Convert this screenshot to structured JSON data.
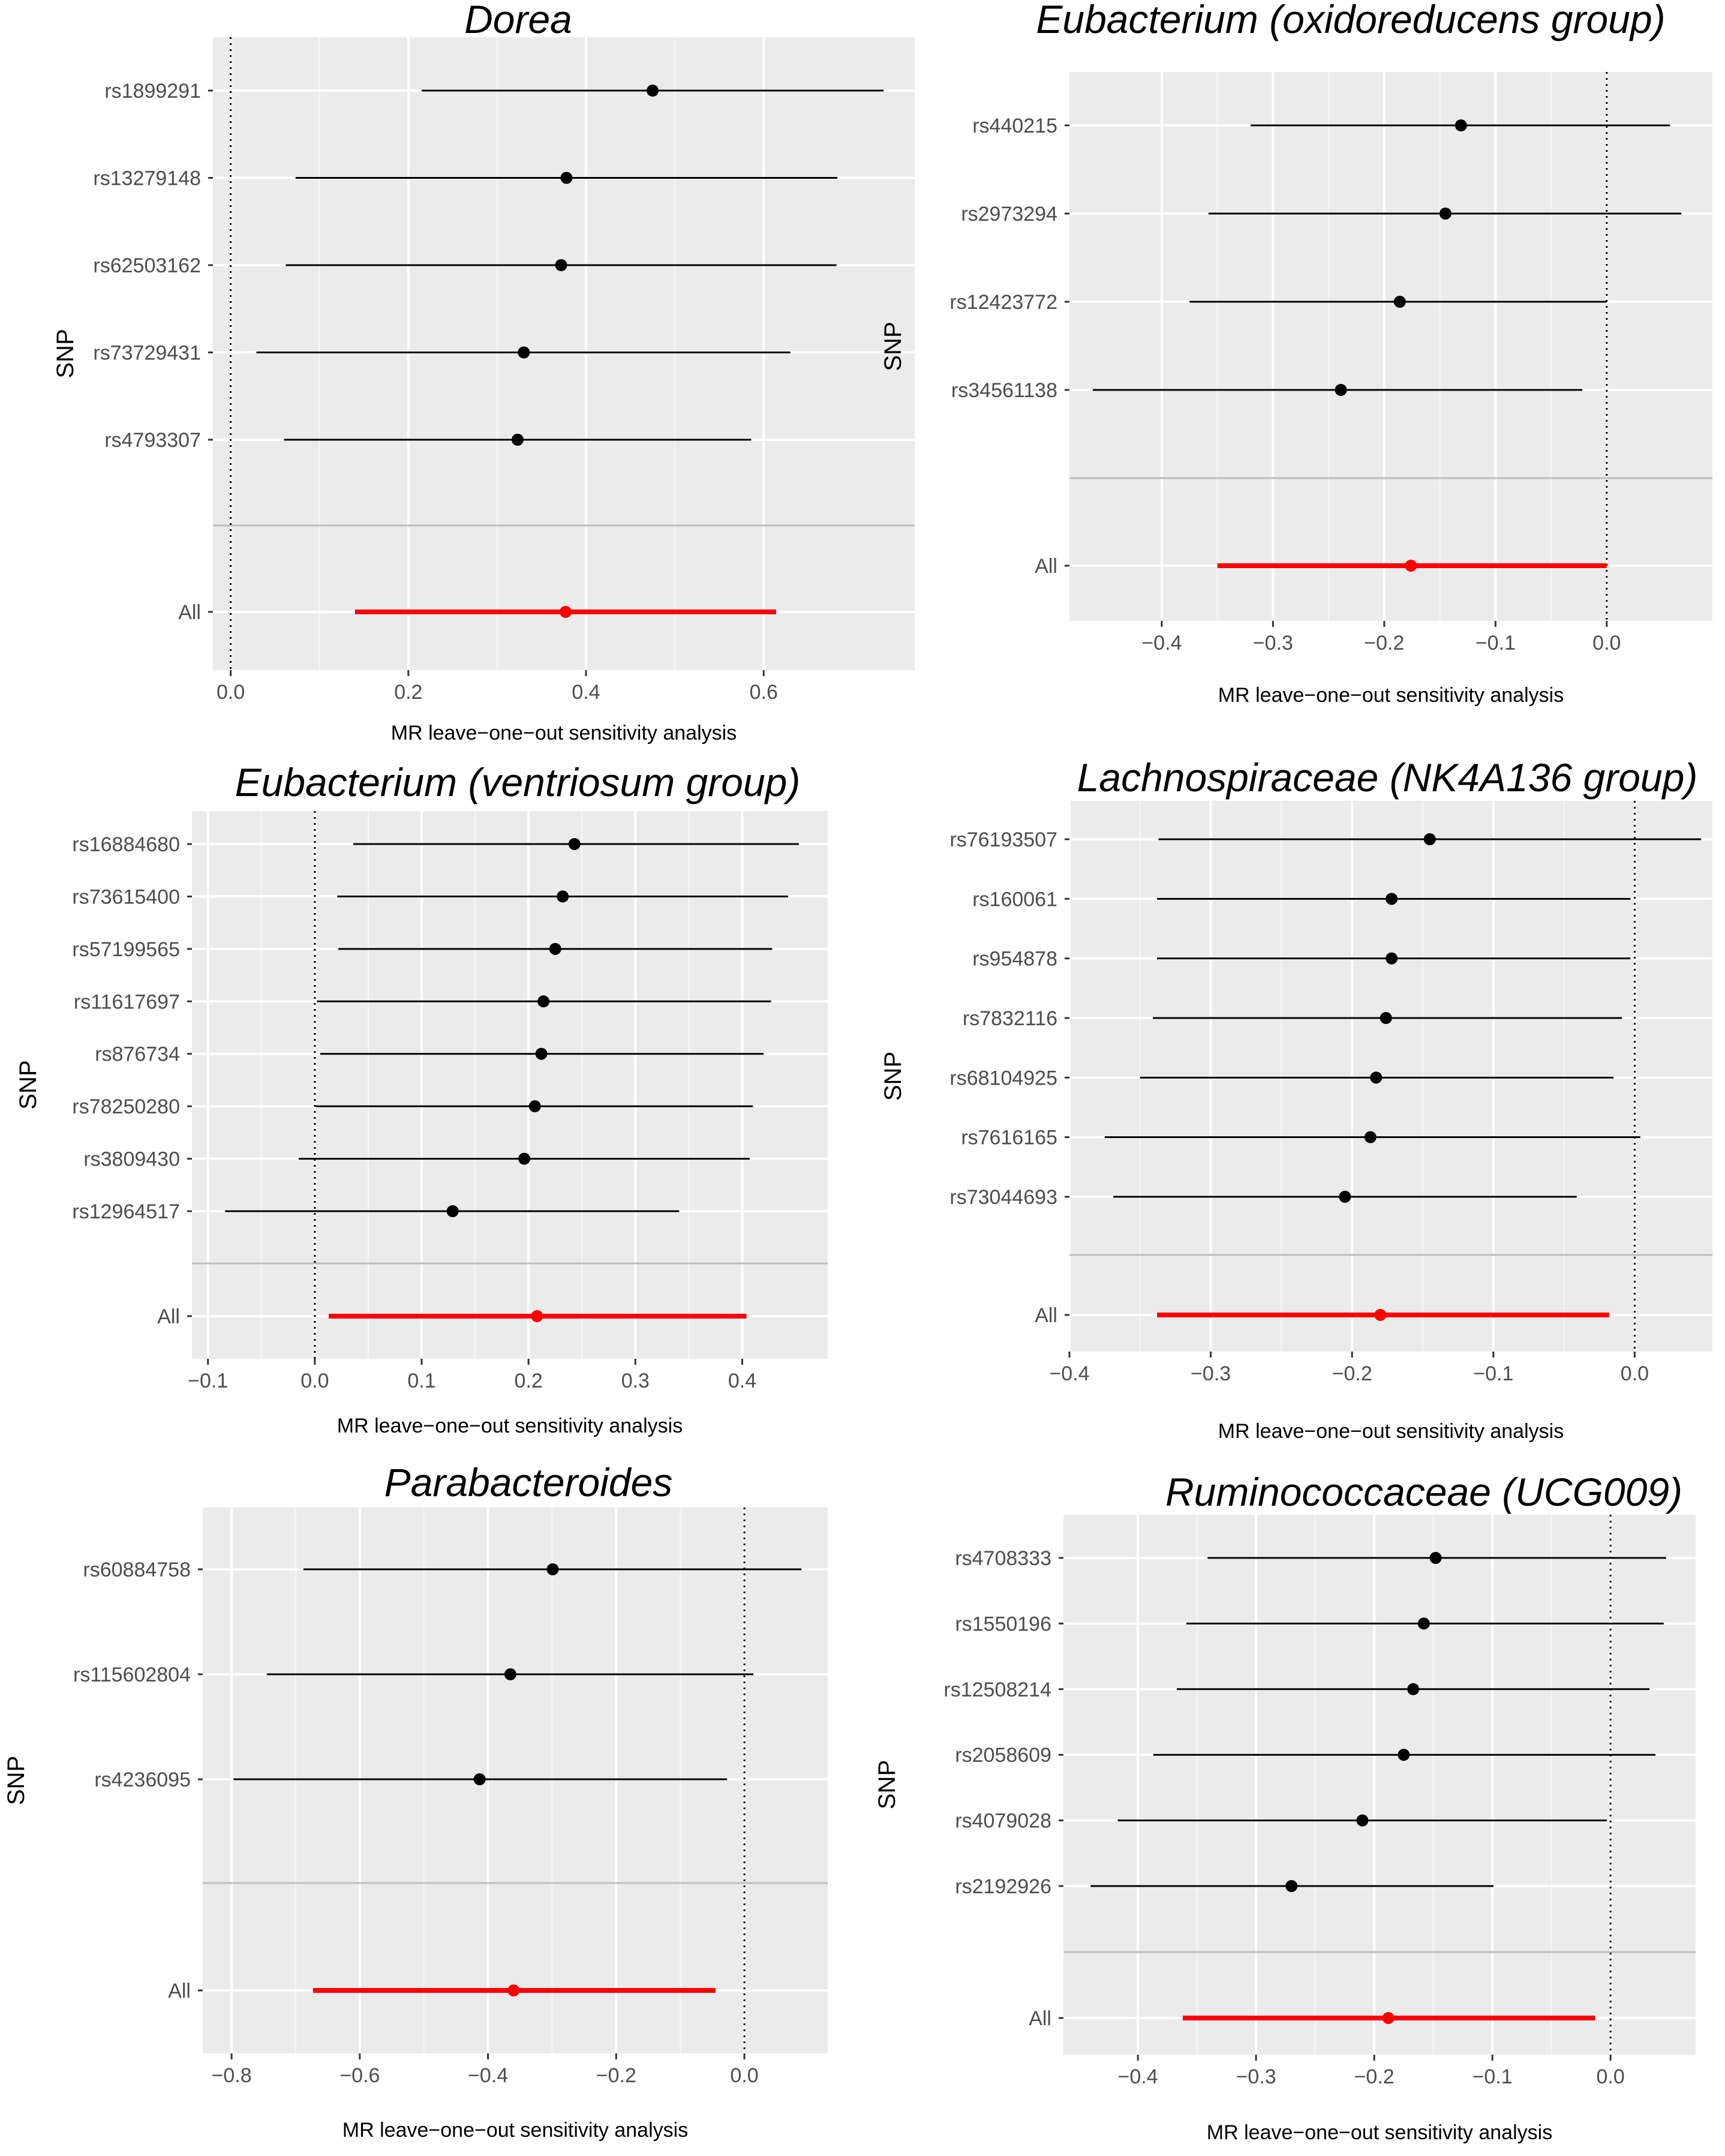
{
  "chart_data": [
    {
      "type": "forest",
      "title": "Dorea",
      "xlabel": "MR leave−one−out sensitivity analysis",
      "ylabel": "SNP",
      "xlim": [
        -0.02,
        0.77
      ],
      "xticks": [
        0.0,
        0.2,
        0.4,
        0.6
      ],
      "xtick_labels": [
        "0.0",
        "0.2",
        "0.4",
        "0.6"
      ],
      "reference_line": 0,
      "grid": true,
      "snps": [
        {
          "label": "rs1899291",
          "estimate": 0.475,
          "lower": 0.215,
          "upper": 0.735
        },
        {
          "label": "rs13279148",
          "estimate": 0.378,
          "lower": 0.073,
          "upper": 0.683
        },
        {
          "label": "rs62503162",
          "estimate": 0.372,
          "lower": 0.062,
          "upper": 0.682
        },
        {
          "label": "rs73729431",
          "estimate": 0.33,
          "lower": 0.029,
          "upper": 0.63
        },
        {
          "label": "rs4793307",
          "estimate": 0.323,
          "lower": 0.06,
          "upper": 0.586
        }
      ],
      "all": {
        "label": "All",
        "estimate": 0.377,
        "lower": 0.14,
        "upper": 0.614,
        "color": "#ff0000"
      }
    },
    {
      "type": "forest",
      "title": "Eubacterium (oxidoreducens group)",
      "xlabel": "MR leave−one−out sensitivity analysis",
      "ylabel": "SNP",
      "xlim": [
        -0.483,
        0.095
      ],
      "xticks": [
        -0.4,
        -0.3,
        -0.2,
        -0.1,
        0.0
      ],
      "xtick_labels": [
        "−0.4",
        "−0.3",
        "−0.2",
        "−0.1",
        "0.0"
      ],
      "reference_line": 0,
      "grid": true,
      "snps": [
        {
          "label": "rs440215",
          "estimate": -0.131,
          "lower": -0.32,
          "upper": 0.057
        },
        {
          "label": "rs2973294",
          "estimate": -0.145,
          "lower": -0.358,
          "upper": 0.067
        },
        {
          "label": "rs12423772",
          "estimate": -0.186,
          "lower": -0.375,
          "upper": 0.0
        },
        {
          "label": "rs34561138",
          "estimate": -0.239,
          "lower": -0.462,
          "upper": -0.022
        }
      ],
      "all": {
        "label": "All",
        "estimate": -0.176,
        "lower": -0.35,
        "upper": 0.0,
        "color": "#ff0000"
      }
    },
    {
      "type": "forest",
      "title": "Eubacterium (ventriosum group)",
      "xlabel": "MR leave−one−out sensitivity analysis",
      "ylabel": "SNP",
      "xlim": [
        -0.115,
        0.48
      ],
      "xticks": [
        -0.1,
        0.0,
        0.1,
        0.2,
        0.3,
        0.4
      ],
      "xtick_labels": [
        "−0.1",
        "0.0",
        "0.1",
        "0.2",
        "0.3",
        "0.4"
      ],
      "reference_line": 0,
      "grid": true,
      "snps": [
        {
          "label": "rs16884680",
          "estimate": 0.243,
          "lower": 0.036,
          "upper": 0.453
        },
        {
          "label": "rs73615400",
          "estimate": 0.232,
          "lower": 0.021,
          "upper": 0.443
        },
        {
          "label": "rs57199565",
          "estimate": 0.225,
          "lower": 0.022,
          "upper": 0.428
        },
        {
          "label": "rs11617697",
          "estimate": 0.214,
          "lower": 0.002,
          "upper": 0.427
        },
        {
          "label": "rs876734",
          "estimate": 0.212,
          "lower": 0.005,
          "upper": 0.42
        },
        {
          "label": "rs78250280",
          "estimate": 0.206,
          "lower": 0.001,
          "upper": 0.41
        },
        {
          "label": "rs3809430",
          "estimate": 0.196,
          "lower": -0.015,
          "upper": 0.407
        },
        {
          "label": "rs12964517",
          "estimate": 0.129,
          "lower": -0.084,
          "upper": 0.341
        }
      ],
      "all": {
        "label": "All",
        "estimate": 0.208,
        "lower": 0.013,
        "upper": 0.404,
        "color": "#ff0000"
      }
    },
    {
      "type": "forest",
      "title": "Lachnospiraceae (NK4A136 group)",
      "xlabel": "MR leave−one−out sensitivity analysis",
      "ylabel": "SNP",
      "xlim": [
        -0.4,
        0.055
      ],
      "xticks": [
        -0.4,
        -0.3,
        -0.2,
        -0.1,
        0.0
      ],
      "xtick_labels": [
        "−0.4",
        "−0.3",
        "−0.2",
        "−0.1",
        "0.0"
      ],
      "reference_line": 0,
      "grid": true,
      "snps": [
        {
          "label": "rs76193507",
          "estimate": -0.145,
          "lower": -0.337,
          "upper": 0.047
        },
        {
          "label": "rs160061",
          "estimate": -0.172,
          "lower": -0.338,
          "upper": -0.003
        },
        {
          "label": "rs954878",
          "estimate": -0.172,
          "lower": -0.338,
          "upper": -0.003
        },
        {
          "label": "rs7832116",
          "estimate": -0.176,
          "lower": -0.341,
          "upper": -0.009
        },
        {
          "label": "rs68104925",
          "estimate": -0.183,
          "lower": -0.35,
          "upper": -0.015
        },
        {
          "label": "rs7616165",
          "estimate": -0.187,
          "lower": -0.375,
          "upper": 0.004
        },
        {
          "label": "rs73044693",
          "estimate": -0.205,
          "lower": -0.369,
          "upper": -0.041
        }
      ],
      "all": {
        "label": "All",
        "estimate": -0.18,
        "lower": -0.338,
        "upper": -0.018,
        "color": "#ff0000"
      }
    },
    {
      "type": "forest",
      "title": "Parabacteroides",
      "xlabel": "MR leave−one−out sensitivity analysis",
      "ylabel": "SNP",
      "xlim": [
        -0.845,
        0.13
      ],
      "xticks": [
        -0.8,
        -0.6,
        -0.4,
        -0.2,
        0.0
      ],
      "xtick_labels": [
        "−0.8",
        "−0.6",
        "−0.4",
        "−0.2",
        "0.0"
      ],
      "reference_line": 0,
      "grid": true,
      "snps": [
        {
          "label": "rs60884758",
          "estimate": -0.299,
          "lower": -0.688,
          "upper": 0.089
        },
        {
          "label": "rs115602804",
          "estimate": -0.365,
          "lower": -0.745,
          "upper": 0.014
        },
        {
          "label": "rs4236095",
          "estimate": -0.413,
          "lower": -0.797,
          "upper": -0.027
        }
      ],
      "all": {
        "label": "All",
        "estimate": -0.36,
        "lower": -0.673,
        "upper": -0.045,
        "color": "#ff0000"
      }
    },
    {
      "type": "forest",
      "title": "Ruminococcaceae (UCG009)",
      "xlabel": "MR leave−one−out sensitivity analysis",
      "ylabel": "SNP",
      "xlim": [
        -0.463,
        0.072
      ],
      "xticks": [
        -0.4,
        -0.3,
        -0.2,
        -0.1,
        0.0
      ],
      "xtick_labels": [
        "−0.4",
        "−0.3",
        "−0.2",
        "−0.1",
        "0.0"
      ],
      "reference_line": 0,
      "grid": true,
      "snps": [
        {
          "label": "rs4708333",
          "estimate": -0.148,
          "lower": -0.341,
          "upper": 0.047
        },
        {
          "label": "rs1550196",
          "estimate": -0.158,
          "lower": -0.359,
          "upper": 0.045
        },
        {
          "label": "rs12508214",
          "estimate": -0.167,
          "lower": -0.367,
          "upper": 0.033
        },
        {
          "label": "rs2058609",
          "estimate": -0.175,
          "lower": -0.387,
          "upper": 0.038
        },
        {
          "label": "rs4079028",
          "estimate": -0.21,
          "lower": -0.417,
          "upper": -0.003
        },
        {
          "label": "rs2192926",
          "estimate": -0.27,
          "lower": -0.44,
          "upper": -0.099
        }
      ],
      "all": {
        "label": "All",
        "estimate": -0.188,
        "lower": -0.362,
        "upper": -0.013,
        "color": "#ff0000"
      }
    }
  ]
}
